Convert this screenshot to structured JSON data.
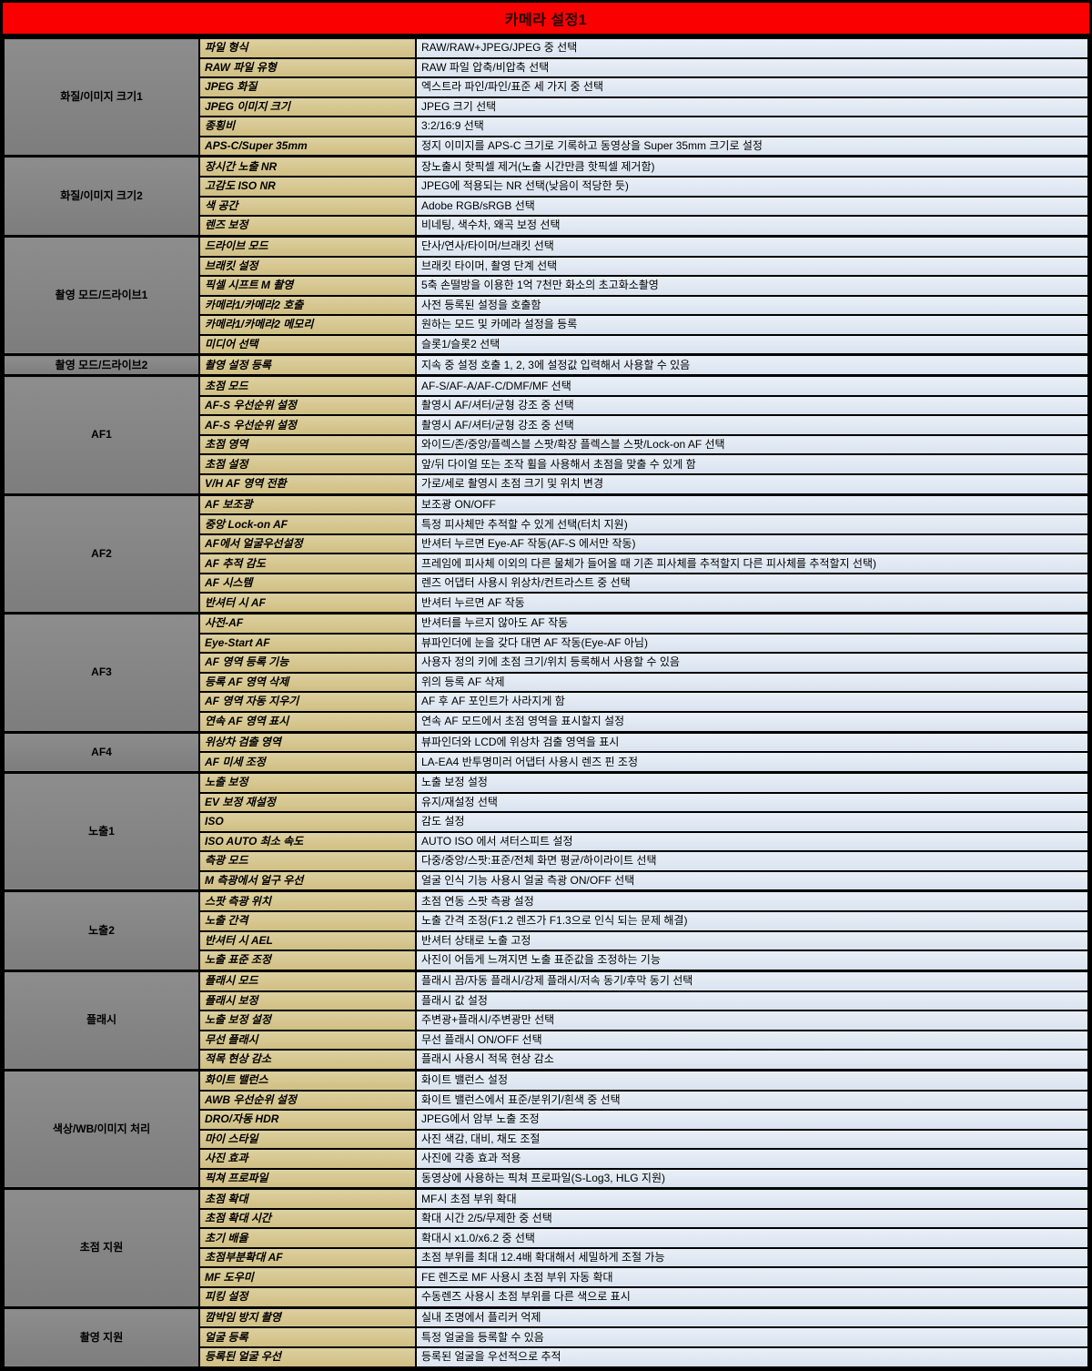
{
  "header": {
    "title": "카메라 설정1",
    "bg_color": "#fb0000",
    "text_color": "#1d0300"
  },
  "colors": {
    "category_bg": "#808080",
    "setting_bg": "#d4c58c",
    "description_bg": "#dce6f1",
    "border": "#000000"
  },
  "columns": [
    "category",
    "setting",
    "description"
  ],
  "sections": [
    {
      "name": "화질/이미지 크기1",
      "rows": [
        {
          "setting": "파일 형식",
          "desc": "RAW/RAW+JPEG/JPEG 중 선택"
        },
        {
          "setting": "RAW 파일 유형",
          "desc": "RAW 파일 압축/비압축 선택"
        },
        {
          "setting": "JPEG 화질",
          "desc": "엑스트라 파인/파인/표준 세 가지 중 선택"
        },
        {
          "setting": "JPEG 이미지 크기",
          "desc": "JPEG 크기 선택"
        },
        {
          "setting": "종횡비",
          "desc": "3:2/16:9 선택"
        },
        {
          "setting": "APS-C/Super 35mm",
          "desc": "정지 이미지를 APS-C 크기로 기록하고 동영상을 Super 35mm 크기로 설정"
        }
      ]
    },
    {
      "name": "화질/이미지 크기2",
      "rows": [
        {
          "setting": "장시간 노출 NR",
          "desc": "장노출시 핫픽셀 제거(노출 시간만큼 핫픽셀 제거함)"
        },
        {
          "setting": "고감도 ISO NR",
          "desc": "JPEG에 적용되는 NR 선택(낮음이 적당한 듯)"
        },
        {
          "setting": "색 공간",
          "desc": "Adobe RGB/sRGB 선택"
        },
        {
          "setting": "렌즈 보정",
          "desc": "비네팅, 색수차, 왜곡 보정 선택"
        }
      ]
    },
    {
      "name": "촬영 모드/드라이브1",
      "rows": [
        {
          "setting": "드라이브 모드",
          "desc": "단사/연사/타이머/브래킷 선택"
        },
        {
          "setting": "브래킷 설정",
          "desc": "브래킷 타이머, 촬영 단계 선택"
        },
        {
          "setting": "픽셀 시프트 M 촬영",
          "desc": "5축 손떨방을 이용한 1억 7천만 화소의 초고화소촬영"
        },
        {
          "setting": "카메라1/카메라2 호출",
          "desc": "사전 등록된 설정을 호출함"
        },
        {
          "setting": "카메라1/카메라2 메모리",
          "desc": "원하는 모드 및 카메라 설정을 등록"
        },
        {
          "setting": "미디어 선택",
          "desc": "슬롯1/슬롯2 선택"
        }
      ]
    },
    {
      "name": "촬영 모드/드라이브2",
      "rows": [
        {
          "setting": "촬영 설정 등록",
          "desc": "지속 중 설정 호출 1, 2, 3에 설정값 입력해서 사용할 수 있음"
        }
      ]
    },
    {
      "name": "AF1",
      "rows": [
        {
          "setting": "초점 모드",
          "desc": "AF-S/AF-A/AF-C/DMF/MF 선택"
        },
        {
          "setting": "AF-S 우선순위 설정",
          "desc": "촬영시 AF/셔터/균형 강조 중 선택"
        },
        {
          "setting": "AF-S 우선순위 설정",
          "desc": "촬영시 AF/셔터/균형 강조 중 선택"
        },
        {
          "setting": "초점 영역",
          "desc": "와이드/존/중앙/플렉스블 스팟/확장 플렉스블 스팟/Lock-on AF 선택"
        },
        {
          "setting": "초점 설정",
          "desc": "앞/뒤 다이얼 또는 조작 휠을 사용해서 초점을 맞출 수 있게 함"
        },
        {
          "setting": "V/H AF 영역 전환",
          "desc": "가로/세로 촬영시 초점 크기 및 위치 변경"
        }
      ]
    },
    {
      "name": "AF2",
      "rows": [
        {
          "setting": "AF 보조광",
          "desc": "보조광 ON/OFF"
        },
        {
          "setting": "중앙 Lock-on AF",
          "desc": "특정 피사체만 추적할 수 있게 선택(터치 지원)"
        },
        {
          "setting": "AF에서 얼굴우선설정",
          "desc": "반셔터 누르면 Eye-AF 작동(AF-S 에서만 작동)"
        },
        {
          "setting": "AF 추적 감도",
          "desc": "프레임에 피사체 이외의 다른 물체가 들어올 때 기존 피사체를 추적할지 다른 피사체를 추적할지 선택)"
        },
        {
          "setting": "AF 시스템",
          "desc": "렌즈 어댑터 사용시 위상차/컨트라스트 중 선택"
        },
        {
          "setting": "반셔터 시 AF",
          "desc": "반셔터 누르면 AF 작동"
        }
      ]
    },
    {
      "name": "AF3",
      "rows": [
        {
          "setting": "사전-AF",
          "desc": "반셔터를 누르지 않아도 AF 작동"
        },
        {
          "setting": "Eye-Start AF",
          "desc": "뷰파인더에 눈을 갖다 대면 AF 작동(Eye-AF 아님)"
        },
        {
          "setting": "AF 영역 등록 기능",
          "desc": "사용자 정의 키에 초점 크기/위치 등록해서 사용할 수 있음"
        },
        {
          "setting": "등록 AF 영역 삭제",
          "desc": "위의 등록 AF 삭제"
        },
        {
          "setting": "AF 영역 자동 지우기",
          "desc": "AF 후 AF 포인트가 사라지게 함"
        },
        {
          "setting": "연속 AF 영역 표시",
          "desc": "연속 AF 모드에서 초점 영역을 표시할지 설정"
        }
      ]
    },
    {
      "name": "AF4",
      "rows": [
        {
          "setting": "위상차 검출 영역",
          "desc": "뷰파인더와 LCD에 위상차 검출 영역을 표시"
        },
        {
          "setting": "AF 미세 조정",
          "desc": "LA-EA4 반투명미러 어댑터 사용시 렌즈 핀 조정"
        }
      ]
    },
    {
      "name": "노출1",
      "rows": [
        {
          "setting": "노출 보정",
          "desc": "노출 보정 설정"
        },
        {
          "setting": "EV 보정 재설정",
          "desc": "유지/재설정 선택"
        },
        {
          "setting": "ISO",
          "desc": "감도 설정"
        },
        {
          "setting": "ISO AUTO 최소 속도",
          "desc": "AUTO ISO 에서 셔터스피트 설정"
        },
        {
          "setting": "측광 모드",
          "desc": "다중/중앙/스팟:표준/전체 화면 평균/하이라이트 선택"
        },
        {
          "setting": "M 측광에서 얼구 우선",
          "desc": "얼굴 인식 기능 사용시 얼굴 측광 ON/OFF 선택"
        }
      ]
    },
    {
      "name": "노출2",
      "rows": [
        {
          "setting": "스팟 측광 위치",
          "desc": "초점 연동 스팟 측광 설정"
        },
        {
          "setting": "노출 간격",
          "desc": "노출 간격 조정(F1.2 렌즈가 F1.3으로 인식 되는 문제 해결)"
        },
        {
          "setting": "반셔터 시 AEL",
          "desc": "반셔터 상태로 노출 고정"
        },
        {
          "setting": "노출 표준 조정",
          "desc": "사진이 어둡게 느껴지면 노출 표준값을 조정하는 기능"
        }
      ]
    },
    {
      "name": "플래시",
      "rows": [
        {
          "setting": "플래시 모드",
          "desc": "플래시 끔/자동 플래시/강제 플래시/저속 동기/후막 동기 선택"
        },
        {
          "setting": "플래시 보정",
          "desc": "플래시 값 설정"
        },
        {
          "setting": "노출 보정 설정",
          "desc": "주변광+플래시/주변광만 선택"
        },
        {
          "setting": "무선 플래시",
          "desc": "무선 플래시 ON/OFF 선택"
        },
        {
          "setting": "적목 현상 감소",
          "desc": "플래시 사용시 적목 현상 감소"
        }
      ]
    },
    {
      "name": "색상/WB/이미지 처리",
      "rows": [
        {
          "setting": "화이트 밸런스",
          "desc": "화이트 밸런스 설정"
        },
        {
          "setting": "AWB 우선순위 설정",
          "desc": "화이트 밸런스에서 표준/분위기/흰색 중 선택"
        },
        {
          "setting": "DRO/자동 HDR",
          "desc": "JPEG에서 암부 노출 조정"
        },
        {
          "setting": "마이 스타일",
          "desc": "사진 색감, 대비, 채도 조절"
        },
        {
          "setting": "사진 효과",
          "desc": "사진에 각종 효과 적용"
        },
        {
          "setting": "픽쳐 프로파일",
          "desc": "동영상에 사용하는 픽쳐 프로파일(S-Log3, HLG 지원)"
        }
      ]
    },
    {
      "name": "초점 지원",
      "rows": [
        {
          "setting": "초점 확대",
          "desc": "MF시 초점 부위 확대"
        },
        {
          "setting": "초점 확대 시간",
          "desc": "확대 시간 2/5/무제한 중 선택"
        },
        {
          "setting": "초기 배율",
          "desc": "확대시 x1.0/x6.2 중 선택"
        },
        {
          "setting": "초점부분확대 AF",
          "desc": "초점 부위를 최대 12.4배 확대해서 세밀하게 조절 가능"
        },
        {
          "setting": "MF 도우미",
          "desc": "FE 렌즈로 MF 사용시 초점 부위 자동 확대"
        },
        {
          "setting": "피킹 설정",
          "desc": "수동렌즈 사용시 초점 부위를 다른 색으로 표시"
        }
      ]
    },
    {
      "name": "촬영 지원",
      "rows": [
        {
          "setting": "깜박임 방지 촬영",
          "desc": "실내 조명에서 플리커 억제"
        },
        {
          "setting": "얼굴 등록",
          "desc": "특정 얼굴을 등록할 수 있음"
        },
        {
          "setting": "등록된 얼굴 우선",
          "desc": "등록된 얼굴을 우선적으로 추적"
        }
      ]
    }
  ]
}
